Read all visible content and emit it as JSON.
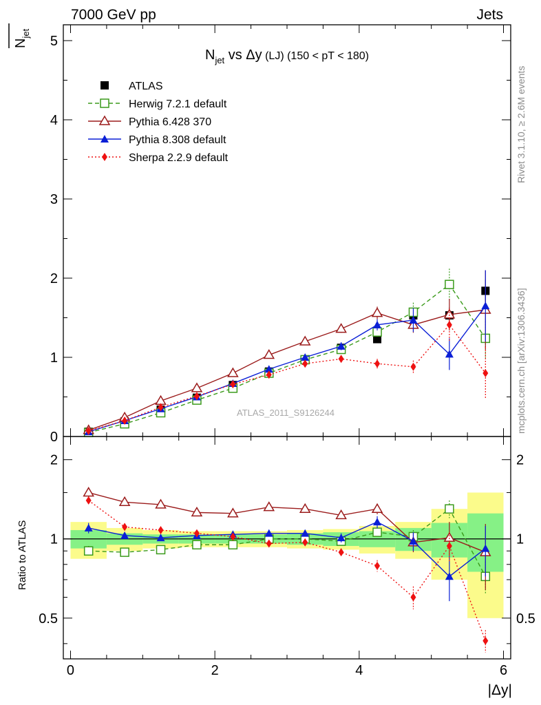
{
  "header": {
    "left": "7000 GeV pp",
    "right": "Jets"
  },
  "side_labels": {
    "rivet": "Rivet 3.1.10, ≥ 2.6M events",
    "mcplots": "mcplots.cern.ch [arXiv:1306.3436]"
  },
  "watermark": "ATLAS_2011_S9126244",
  "title": {
    "main": "N",
    "main_sub": "jet",
    "vs": " vs Δy",
    "tag": " (LJ)",
    "range": " (150 < pT < 180)"
  },
  "ylabel_top": {
    "main": "N",
    "sub": "jet"
  },
  "ylabel_bottom": "Ratio to ATLAS",
  "xlabel": "|Δy|",
  "colors": {
    "ATLAS": "#000000",
    "Herwig": "#3a9a1a",
    "Pythia6": "#9b1b1b",
    "Pythia8": "#0a1fd6",
    "Sherpa": "#ee1111",
    "band_inner": "#86f186",
    "band_outer": "#fbfb8b"
  },
  "legend": [
    {
      "key": "ATLAS",
      "label": "ATLAS"
    },
    {
      "key": "Herwig",
      "label": "Herwig 7.2.1 default"
    },
    {
      "key": "Pythia6",
      "label": "Pythia 6.428 370"
    },
    {
      "key": "Pythia8",
      "label": "Pythia 8.308 default"
    },
    {
      "key": "Sherpa",
      "label": "Sherpa 2.2.9 default"
    }
  ],
  "chart_data": [
    {
      "type": "scatter",
      "panel": "main",
      "title": "Njet vs Δy (LJ) (150 < pT < 180)",
      "xlabel": "|Δy|",
      "ylabel": "Njet",
      "xlim": [
        -0.1,
        6.1
      ],
      "ylim": [
        0,
        5.2
      ],
      "x_ticks": [
        0,
        2,
        4,
        6
      ],
      "y_ticks": [
        0,
        1,
        2,
        3,
        4,
        5
      ],
      "x": [
        0.25,
        0.75,
        1.25,
        1.75,
        2.25,
        2.75,
        3.25,
        3.75,
        4.25,
        4.75,
        5.25,
        5.75
      ],
      "series": [
        {
          "key": "ATLAS",
          "name": "ATLAS",
          "marker": "square-filled",
          "line": "none",
          "values": [
            0.06,
            0.19,
            0.34,
            0.49,
            0.65,
            0.82,
            0.97,
            1.12,
            1.23,
            1.53,
            1.53,
            1.84
          ],
          "errors": [
            0.01,
            0.01,
            0.01,
            0.02,
            0.02,
            0.02,
            0.03,
            0.04,
            0.05,
            0.07,
            0.1,
            0.14
          ]
        },
        {
          "key": "Herwig",
          "name": "Herwig 7.2.1 default",
          "marker": "square-open",
          "line": "dashed",
          "values": [
            0.05,
            0.16,
            0.3,
            0.46,
            0.61,
            0.8,
            0.97,
            1.1,
            1.32,
            1.57,
            1.92,
            1.24
          ],
          "errors": [
            0.01,
            0.01,
            0.01,
            0.01,
            0.02,
            0.02,
            0.03,
            0.04,
            0.06,
            0.12,
            0.2,
            0.25
          ]
        },
        {
          "key": "Pythia6",
          "name": "Pythia 6.428 370",
          "marker": "triangle-open",
          "line": "solid",
          "values": [
            0.08,
            0.24,
            0.45,
            0.61,
            0.8,
            1.03,
            1.2,
            1.36,
            1.56,
            1.41,
            1.54,
            1.6
          ],
          "errors": [
            0.01,
            0.01,
            0.02,
            0.02,
            0.02,
            0.03,
            0.03,
            0.05,
            0.08,
            0.1,
            0.2,
            0.5
          ]
        },
        {
          "key": "Pythia8",
          "name": "Pythia 8.308 default",
          "marker": "triangle-filled",
          "line": "solid",
          "values": [
            0.06,
            0.2,
            0.35,
            0.5,
            0.67,
            0.85,
            1.0,
            1.14,
            1.41,
            1.47,
            1.04,
            1.65
          ],
          "errors": [
            0.01,
            0.01,
            0.01,
            0.02,
            0.02,
            0.03,
            0.03,
            0.05,
            0.07,
            0.15,
            0.2,
            0.45
          ]
        },
        {
          "key": "Sherpa",
          "name": "Sherpa 2.2.9 default",
          "marker": "diamond-filled",
          "line": "dotted",
          "values": [
            0.07,
            0.2,
            0.37,
            0.51,
            0.66,
            0.78,
            0.92,
            0.98,
            0.92,
            0.88,
            1.41,
            0.8
          ],
          "errors": [
            0.01,
            0.01,
            0.01,
            0.02,
            0.02,
            0.02,
            0.03,
            0.04,
            0.06,
            0.08,
            0.2,
            0.33
          ]
        }
      ]
    },
    {
      "type": "scatter",
      "panel": "ratio",
      "ylabel": "Ratio to ATLAS",
      "xlabel": "|Δy|",
      "xlim": [
        -0.1,
        6.1
      ],
      "ylim": [
        0.35,
        2.45
      ],
      "x_ticks": [
        0,
        2,
        4,
        6
      ],
      "y_ticks": [
        0.5,
        1,
        2
      ],
      "x": [
        0.25,
        0.75,
        1.25,
        1.75,
        2.25,
        2.75,
        3.25,
        3.75,
        4.25,
        4.75,
        5.25,
        5.75
      ],
      "bands": {
        "x_edges": [
          0,
          0.5,
          1.0,
          1.5,
          2.0,
          2.5,
          3.0,
          3.5,
          4.0,
          4.5,
          5.0,
          5.5,
          6.0
        ],
        "inner": [
          0.08,
          0.05,
          0.04,
          0.04,
          0.04,
          0.04,
          0.05,
          0.06,
          0.07,
          0.1,
          0.15,
          0.25
        ],
        "outer": [
          0.16,
          0.1,
          0.08,
          0.07,
          0.07,
          0.07,
          0.08,
          0.09,
          0.12,
          0.16,
          0.3,
          0.5
        ]
      },
      "series": [
        {
          "key": "Herwig",
          "name": "Herwig 7.2.1 default",
          "marker": "square-open",
          "line": "dashed",
          "values": [
            0.9,
            0.89,
            0.91,
            0.95,
            0.95,
            1.0,
            1.0,
            0.98,
            1.06,
            1.02,
            1.3,
            0.72
          ],
          "errors": [
            0.04,
            0.02,
            0.02,
            0.02,
            0.02,
            0.02,
            0.03,
            0.03,
            0.04,
            0.06,
            0.1,
            0.1
          ]
        },
        {
          "key": "Pythia6",
          "name": "Pythia 6.428 370",
          "marker": "triangle-open",
          "line": "solid",
          "values": [
            1.5,
            1.38,
            1.35,
            1.26,
            1.25,
            1.32,
            1.3,
            1.23,
            1.3,
            0.97,
            1.01,
            0.89
          ],
          "errors": [
            0.06,
            0.02,
            0.02,
            0.02,
            0.02,
            0.02,
            0.03,
            0.04,
            0.06,
            0.08,
            0.15,
            0.25
          ]
        },
        {
          "key": "Pythia8",
          "name": "Pythia 8.308 default",
          "marker": "triangle-filled",
          "line": "solid",
          "values": [
            1.1,
            1.03,
            1.01,
            1.03,
            1.04,
            1.05,
            1.05,
            1.01,
            1.16,
            0.98,
            0.72,
            0.92
          ],
          "errors": [
            0.05,
            0.02,
            0.02,
            0.02,
            0.02,
            0.02,
            0.03,
            0.04,
            0.06,
            0.08,
            0.14,
            0.2
          ]
        },
        {
          "key": "Sherpa",
          "name": "Sherpa 2.2.9 default",
          "marker": "diamond-filled",
          "line": "dotted",
          "values": [
            1.4,
            1.11,
            1.08,
            1.05,
            1.02,
            0.96,
            0.97,
            0.89,
            0.79,
            0.6,
            0.94,
            0.41
          ],
          "errors": [
            0.05,
            0.02,
            0.02,
            0.02,
            0.02,
            0.02,
            0.03,
            0.03,
            0.04,
            0.06,
            0.12,
            0.04
          ]
        }
      ]
    }
  ]
}
